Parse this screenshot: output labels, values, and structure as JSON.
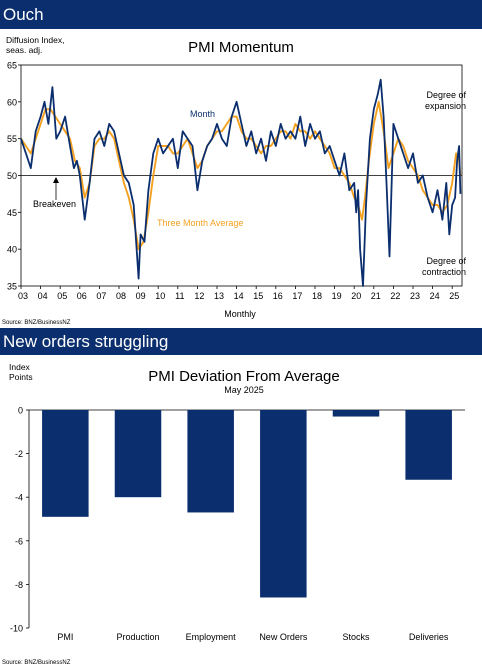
{
  "banners": {
    "top": "Ouch",
    "bottom": "New orders struggling"
  },
  "colors": {
    "navy": "#0b2e6e",
    "orange": "#f3a11f"
  },
  "chart_data": [
    {
      "type": "line",
      "title": "PMI Momentum",
      "ylabel": "Diffusion Index, seas. adj.",
      "xlabel": "Monthly",
      "ylim": [
        35,
        65
      ],
      "y_ticks": [
        "35",
        "40",
        "45",
        "50",
        "55",
        "60",
        "65"
      ],
      "x_tick_labels": [
        "03",
        "04",
        "05",
        "06",
        "07",
        "08",
        "09",
        "10",
        "11",
        "12",
        "13",
        "14",
        "15",
        "16",
        "17",
        "18",
        "19",
        "20",
        "21",
        "22",
        "23",
        "24",
        "25"
      ],
      "x_range": [
        2003.0,
        2025.5
      ],
      "reference_line": 50,
      "annotations": {
        "expansion": "Degree of expansion",
        "contraction": "Degree of contraction",
        "breakeven": "Breakeven"
      },
      "series_labels": {
        "month": "Month",
        "avg": "Three Month Average"
      },
      "source": "Source: BNZ/BusinessNZ",
      "series": [
        {
          "name": "Month",
          "color": "#0b2e6e",
          "x": [
            2003.0,
            2003.25,
            2003.5,
            2003.75,
            2004.0,
            2004.2,
            2004.4,
            2004.6,
            2004.8,
            2005.0,
            2005.25,
            2005.5,
            2005.7,
            2005.85,
            2006.0,
            2006.25,
            2006.5,
            2006.75,
            2007.0,
            2007.25,
            2007.5,
            2007.75,
            2008.0,
            2008.25,
            2008.5,
            2008.75,
            2009.0,
            2009.1,
            2009.3,
            2009.5,
            2009.75,
            2010.0,
            2010.25,
            2010.5,
            2010.75,
            2011.0,
            2011.25,
            2011.5,
            2011.75,
            2012.0,
            2012.25,
            2012.5,
            2012.75,
            2013.0,
            2013.25,
            2013.5,
            2013.75,
            2014.0,
            2014.25,
            2014.5,
            2014.75,
            2015.0,
            2015.25,
            2015.5,
            2015.75,
            2016.0,
            2016.25,
            2016.5,
            2016.75,
            2017.0,
            2017.25,
            2017.5,
            2017.75,
            2018.0,
            2018.25,
            2018.5,
            2018.75,
            2019.0,
            2019.25,
            2019.5,
            2019.75,
            2020.0,
            2020.1,
            2020.2,
            2020.3,
            2020.45,
            2020.6,
            2020.8,
            2021.0,
            2021.2,
            2021.35,
            2021.5,
            2021.65,
            2021.8,
            2022.0,
            2022.25,
            2022.5,
            2022.75,
            2023.0,
            2023.25,
            2023.5,
            2023.75,
            2024.0,
            2024.25,
            2024.5,
            2024.7,
            2024.85,
            2025.0,
            2025.15,
            2025.25,
            2025.35,
            2025.42
          ],
          "values": [
            55,
            53,
            51,
            56,
            58,
            60,
            57,
            62,
            55,
            56,
            58,
            54,
            51,
            52,
            50,
            44,
            49,
            55,
            56,
            54,
            57,
            56,
            53,
            50,
            49,
            46,
            36,
            42,
            41,
            48,
            53,
            55,
            53,
            54,
            55,
            51,
            56,
            55,
            54,
            48,
            52,
            54,
            55,
            57,
            55,
            54,
            58,
            60,
            57,
            54,
            56,
            53,
            55,
            52,
            56,
            54,
            57,
            55,
            56,
            55,
            58,
            54,
            57,
            55,
            56,
            53,
            54,
            52,
            50,
            53,
            48,
            49,
            45,
            48,
            40,
            35,
            46,
            55,
            59,
            61,
            63,
            58,
            49,
            39,
            57,
            55,
            53,
            51,
            53,
            49,
            50,
            47,
            45,
            48,
            44,
            49,
            42,
            46,
            47,
            52,
            54,
            47.5
          ]
        },
        {
          "name": "Three Month Average",
          "color": "#f3a11f",
          "x": [
            2003.0,
            2003.25,
            2003.5,
            2003.75,
            2004.0,
            2004.25,
            2004.5,
            2004.75,
            2005.0,
            2005.25,
            2005.5,
            2005.75,
            2006.0,
            2006.25,
            2006.5,
            2006.75,
            2007.0,
            2007.25,
            2007.5,
            2007.75,
            2008.0,
            2008.25,
            2008.5,
            2008.75,
            2009.0,
            2009.25,
            2009.5,
            2009.75,
            2010.0,
            2010.25,
            2010.5,
            2010.75,
            2011.0,
            2011.25,
            2011.5,
            2011.75,
            2012.0,
            2012.25,
            2012.5,
            2012.75,
            2013.0,
            2013.25,
            2013.5,
            2013.75,
            2014.0,
            2014.25,
            2014.5,
            2014.75,
            2015.0,
            2015.25,
            2015.5,
            2015.75,
            2016.0,
            2016.25,
            2016.5,
            2016.75,
            2017.0,
            2017.25,
            2017.5,
            2017.75,
            2018.0,
            2018.25,
            2018.5,
            2018.75,
            2019.0,
            2019.25,
            2019.5,
            2019.75,
            2020.0,
            2020.2,
            2020.4,
            2020.55,
            2020.75,
            2021.0,
            2021.25,
            2021.5,
            2021.75,
            2022.0,
            2022.25,
            2022.5,
            2022.75,
            2023.0,
            2023.25,
            2023.5,
            2023.75,
            2024.0,
            2024.25,
            2024.5,
            2024.75,
            2025.0,
            2025.2,
            2025.35,
            2025.42
          ],
          "values": [
            55,
            54,
            53,
            55,
            57,
            59,
            59,
            58,
            57,
            56,
            55,
            52,
            51,
            47,
            49,
            54,
            55,
            55,
            56,
            55,
            52,
            49,
            47,
            44,
            40,
            41,
            45,
            50,
            54,
            54,
            54,
            53,
            53,
            54,
            55,
            53,
            51,
            52,
            54,
            55,
            56,
            56,
            57,
            58,
            58,
            56,
            55,
            55,
            54,
            53,
            54,
            54,
            55,
            56,
            56,
            55,
            57,
            56,
            56,
            55,
            56,
            55,
            54,
            53,
            51,
            51,
            50,
            49,
            47,
            46,
            44,
            47,
            52,
            57,
            60,
            56,
            51,
            53,
            55,
            54,
            52,
            51,
            50,
            48,
            47,
            46,
            46,
            45,
            46,
            49,
            53,
            52,
            50
          ]
        }
      ]
    },
    {
      "type": "bar",
      "title": "PMI Deviation From Average",
      "subtitle": "May 2025",
      "ylabel": "Index Points",
      "ylim": [
        -10,
        0
      ],
      "y_ticks": [
        "0",
        "-2",
        "-4",
        "-6",
        "-8",
        "-10"
      ],
      "categories": [
        "PMI",
        "Production",
        "Employment",
        "New Orders",
        "Stocks",
        "Deliveries"
      ],
      "values": [
        -4.9,
        -4.0,
        -4.7,
        -8.6,
        -0.3,
        -3.2
      ],
      "color": "#0b2e6e",
      "source": "Source: BNZ/BusinessNZ"
    }
  ]
}
